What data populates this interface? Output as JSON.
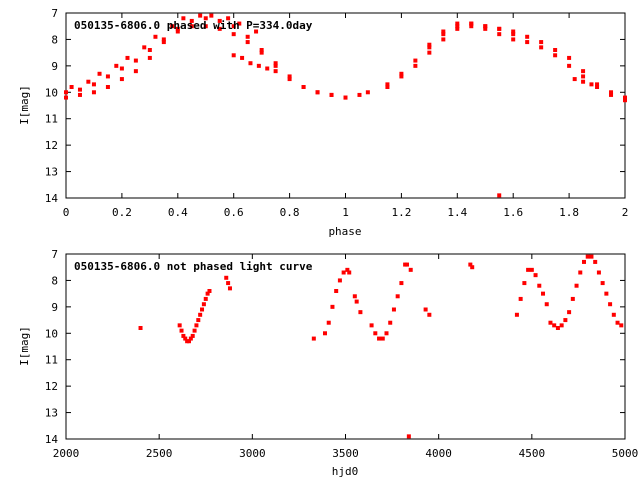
{
  "chart_data": [
    {
      "type": "scatter",
      "title": "050135-6806.0 phased with P=334.0day",
      "xlabel": "phase",
      "ylabel": "I[mag]",
      "xlim": [
        0,
        2
      ],
      "ylim": [
        14,
        7
      ],
      "y_inverted": true,
      "xticks": [
        "0",
        "0.2",
        "0.4",
        "0.6",
        "0.8",
        "1",
        "1.2",
        "1.4",
        "1.6",
        "1.8",
        "2"
      ],
      "yticks": [
        "7",
        "8",
        "9",
        "10",
        "11",
        "12",
        "13",
        "14"
      ],
      "grid": false,
      "marker_color": "#ff0000",
      "series": [
        {
          "x": [
            0.0,
            0.05,
            0.1,
            0.15,
            0.2,
            0.25,
            0.3,
            0.35,
            0.4,
            0.45,
            0.5,
            0.55,
            0.6,
            0.65,
            0.7,
            0.75,
            0.8,
            0.85,
            0.9,
            0.95,
            1.0,
            1.08,
            1.15,
            1.2,
            1.25,
            1.3,
            1.35,
            1.4,
            1.45,
            1.5,
            1.55,
            1.6,
            1.65,
            1.7,
            1.75,
            1.8,
            1.85,
            1.9,
            1.95,
            2.0,
            0.0,
            0.05,
            0.1,
            0.15,
            0.2,
            0.25,
            0.3,
            0.35,
            0.4,
            0.45,
            0.5,
            0.55,
            0.6,
            0.65,
            0.7,
            0.75,
            0.8,
            0.85,
            0.9,
            0.95,
            1.0,
            1.05,
            1.15,
            1.2,
            1.25,
            1.3,
            1.35,
            1.4,
            1.45,
            1.5,
            1.55,
            1.6,
            1.65,
            1.7,
            1.75,
            1.8,
            1.85,
            1.9,
            1.95,
            2.0,
            0.02,
            0.08,
            0.12,
            0.18,
            0.22,
            0.28,
            0.32,
            0.38,
            0.42,
            0.48,
            0.52,
            0.58,
            0.62,
            0.68,
            1.3,
            1.35,
            1.4,
            1.45,
            1.5,
            1.55,
            1.6,
            0.6,
            0.63,
            0.66,
            0.69,
            0.72,
            0.75,
            1.82,
            1.85,
            1.88,
            1.55
          ],
          "y": [
            10.2,
            10.1,
            10.0,
            9.8,
            9.5,
            9.2,
            8.7,
            8.1,
            7.6,
            7.3,
            7.2,
            7.3,
            7.5,
            7.9,
            8.4,
            8.9,
            9.4,
            9.8,
            10.0,
            10.1,
            10.2,
            10.0,
            9.7,
            9.3,
            8.8,
            8.2,
            7.7,
            7.4,
            7.4,
            7.5,
            7.6,
            7.8,
            7.9,
            8.1,
            8.4,
            8.7,
            9.2,
            9.7,
            10.0,
            10.2,
            10.0,
            9.9,
            9.7,
            9.4,
            9.1,
            8.8,
            8.4,
            8.0,
            7.7,
            7.5,
            7.5,
            7.6,
            7.8,
            8.1,
            8.5,
            9.0,
            9.5,
            9.8,
            10.0,
            10.1,
            10.2,
            10.1,
            9.8,
            9.4,
            9.0,
            8.5,
            8.0,
            7.6,
            7.5,
            7.6,
            7.8,
            8.0,
            8.1,
            8.3,
            8.6,
            9.0,
            9.4,
            9.8,
            10.1,
            10.3,
            9.8,
            9.6,
            9.3,
            9.0,
            8.7,
            8.3,
            7.9,
            7.5,
            7.2,
            7.1,
            7.1,
            7.2,
            7.4,
            7.7,
            8.3,
            7.8,
            7.5,
            7.4,
            7.5,
            7.6,
            7.7,
            8.6,
            8.7,
            8.9,
            9.0,
            9.1,
            9.2,
            9.5,
            9.6,
            9.7,
            13.9
          ]
        }
      ]
    },
    {
      "type": "scatter",
      "title": "050135-6806.0 not phased light curve",
      "xlabel": "hjd0",
      "ylabel": "I[mag]",
      "xlim": [
        2000,
        5000
      ],
      "ylim": [
        14,
        7
      ],
      "y_inverted": true,
      "xticks": [
        "2000",
        "2500",
        "3000",
        "3500",
        "4000",
        "4500",
        "5000"
      ],
      "yticks": [
        "7",
        "8",
        "9",
        "10",
        "11",
        "12",
        "13",
        "14"
      ],
      "grid": false,
      "marker_color": "#ff0000",
      "series": [
        {
          "x": [
            2400,
            2610,
            2620,
            2630,
            2640,
            2650,
            2660,
            2670,
            2680,
            2690,
            2700,
            2710,
            2720,
            2730,
            2740,
            2750,
            2760,
            2770,
            2860,
            2870,
            2880,
            3330,
            3390,
            3410,
            3430,
            3450,
            3470,
            3490,
            3510,
            3520,
            3550,
            3560,
            3580,
            3640,
            3660,
            3680,
            3700,
            3720,
            3740,
            3760,
            3780,
            3800,
            3820,
            3830,
            3850,
            3930,
            3950,
            4170,
            4180,
            4420,
            4440,
            4460,
            4480,
            4500,
            4520,
            4540,
            4560,
            4580,
            4600,
            4620,
            4640,
            4660,
            4680,
            4700,
            4720,
            4740,
            4760,
            4780,
            4800,
            4820,
            4840,
            4860,
            4880,
            4900,
            4920,
            4940,
            4960,
            4980,
            3840
          ],
          "y": [
            9.8,
            9.7,
            9.9,
            10.1,
            10.2,
            10.3,
            10.3,
            10.2,
            10.1,
            9.9,
            9.7,
            9.5,
            9.3,
            9.1,
            8.9,
            8.7,
            8.5,
            8.4,
            7.9,
            8.1,
            8.3,
            10.2,
            10.0,
            9.6,
            9.0,
            8.4,
            8.0,
            7.7,
            7.6,
            7.7,
            8.6,
            8.8,
            9.2,
            9.7,
            10.0,
            10.2,
            10.2,
            10.0,
            9.6,
            9.1,
            8.6,
            8.1,
            7.4,
            7.4,
            7.6,
            9.1,
            9.3,
            7.4,
            7.5,
            9.3,
            8.7,
            8.1,
            7.6,
            7.6,
            7.8,
            8.2,
            8.5,
            8.9,
            9.6,
            9.7,
            9.8,
            9.7,
            9.5,
            9.2,
            8.7,
            8.2,
            7.7,
            7.3,
            7.1,
            7.1,
            7.3,
            7.7,
            8.1,
            8.5,
            8.9,
            9.3,
            9.6,
            9.7,
            13.9
          ]
        }
      ]
    }
  ]
}
